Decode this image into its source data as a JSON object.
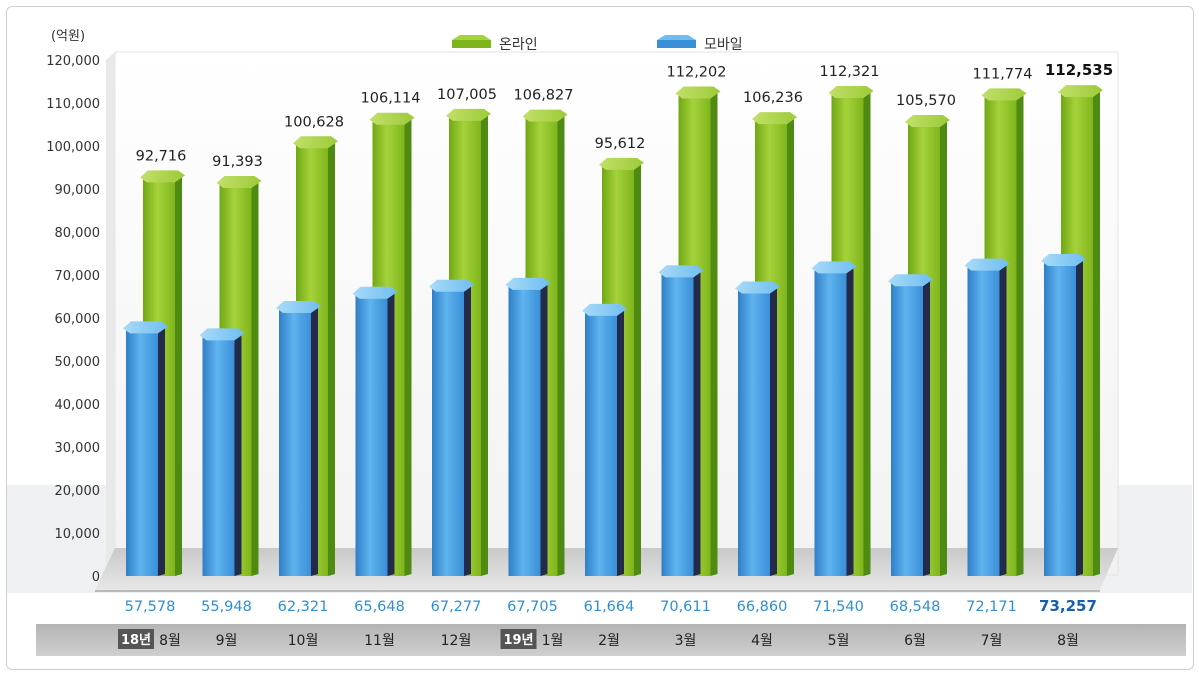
{
  "chart_data": {
    "type": "bar",
    "unit_label": "(억원)",
    "categories": [
      "8월",
      "9월",
      "10월",
      "11월",
      "12월",
      "1월",
      "2월",
      "3월",
      "4월",
      "5월",
      "6월",
      "7월",
      "8월"
    ],
    "year_badges": [
      {
        "label": "18년",
        "category_index": 0
      },
      {
        "label": "19년",
        "category_index": 5
      }
    ],
    "series": [
      {
        "name": "온라인",
        "color": "#8cc21f",
        "values": [
          92716,
          91393,
          100628,
          106114,
          107005,
          106827,
          95612,
          112202,
          106236,
          112321,
          105570,
          111774,
          112535
        ]
      },
      {
        "name": "모바일",
        "color": "#3d9be0",
        "values": [
          57578,
          55948,
          62321,
          65648,
          67277,
          67705,
          61664,
          70611,
          66860,
          71540,
          68548,
          72171,
          73257
        ]
      }
    ],
    "value_labels": {
      "온라인": [
        "92,716",
        "91,393",
        "100,628",
        "106,114",
        "107,005",
        "106,827",
        "95,612",
        "112,202",
        "106,236",
        "112,321",
        "105,570",
        "111,774",
        "112,535"
      ],
      "모바일": [
        "57,578",
        "55,948",
        "62,321",
        "65,648",
        "67,277",
        "67,705",
        "61,664",
        "70,611",
        "66,860",
        "71,540",
        "68,548",
        "72,171",
        "73,257"
      ]
    },
    "yticks": [
      "0",
      "10,000",
      "20,000",
      "30,000",
      "40,000",
      "50,000",
      "60,000",
      "70,000",
      "80,000",
      "90,000",
      "100,000",
      "110,000",
      "120,000"
    ],
    "ylim": [
      0,
      120000
    ],
    "legend_position": "top-center",
    "highlight_last": true
  }
}
